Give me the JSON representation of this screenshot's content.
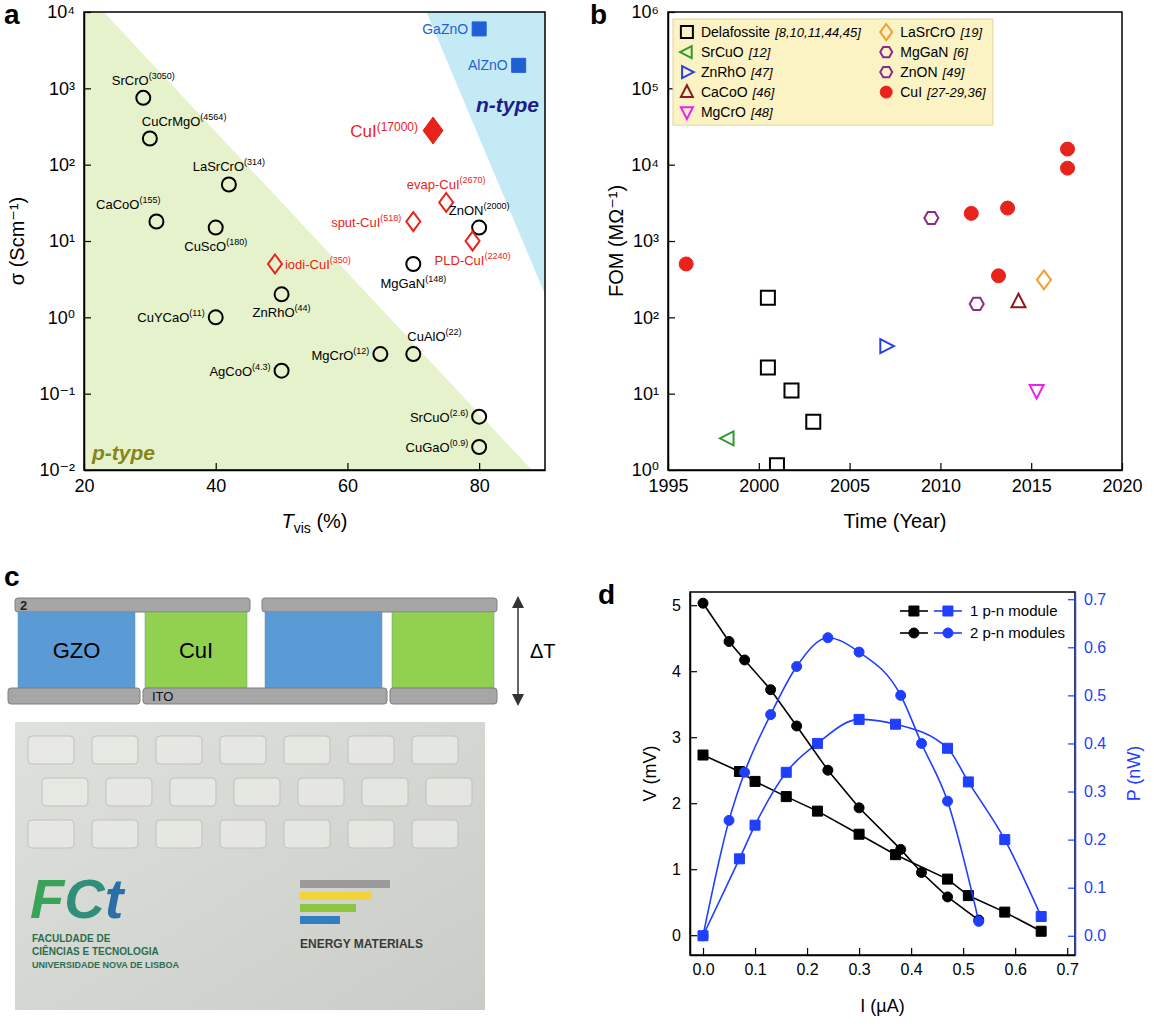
{
  "chart_data": [
    {
      "type": "scatter",
      "panel_label": "a",
      "x_label": "Tvis (%)",
      "y_label": "σ (Scm⁻¹)",
      "log": "y",
      "xlim": [
        20,
        90
      ],
      "ylim": [
        0.01,
        10000
      ],
      "xticks": [
        20,
        40,
        60,
        80
      ],
      "yticks": [
        {
          "value": 0.01,
          "label": "10⁻²"
        },
        {
          "value": 0.1,
          "label": "10⁻¹"
        },
        {
          "value": 1,
          "label": "10⁰"
        },
        {
          "value": 10,
          "label": "10¹"
        },
        {
          "value": 100,
          "label": "10²"
        },
        {
          "value": 1000,
          "label": "10³"
        },
        {
          "value": 10000,
          "label": "10⁴"
        }
      ],
      "regions": [
        {
          "name": "p-type",
          "color": "#e6f2cb",
          "points": [
            [
              20,
              0.01
            ],
            [
              20,
              10000
            ],
            [
              23,
              10000
            ],
            [
              88,
              0.01
            ]
          ]
        },
        {
          "name": "n-type",
          "color": "#c4ebf5",
          "points": [
            [
              72,
              10000
            ],
            [
              90,
              10000
            ],
            [
              90,
              2
            ]
          ]
        }
      ],
      "series": [
        {
          "color": "#000000",
          "marker": "open-circle",
          "x": [
            29,
            30,
            42,
            31,
            40,
            80,
            70,
            50,
            40,
            65,
            70,
            50,
            80,
            80
          ],
          "values": [
            750,
            220,
            55,
            18,
            15,
            15,
            5,
            2,
            1,
            0.33,
            0.33,
            0.2,
            0.05,
            0.02
          ],
          "point_labels": [
            "SrCrO",
            "CuCrMgO",
            "LaSrCrO",
            "CaCoO",
            "CuScO",
            "ZnON",
            "MgGaN",
            "ZnRhO",
            "CuYCaO",
            "MgCrO",
            "CuAlO",
            "AgCoO",
            "SrCuO",
            "CuGaO"
          ],
          "point_notes": [
            "(3050)",
            "(4564)",
            "(314)",
            "(155)",
            "(180)",
            "(2000)",
            "(148)",
            "(44)",
            "(11)",
            "(12)",
            "(22)",
            "(4.3)",
            "(2.6)",
            "(0.9)"
          ]
        },
        {
          "color": "#e8231b",
          "marker": "open-diamond",
          "x": [
            49,
            70,
            75,
            79
          ],
          "values": [
            5,
            18,
            32,
            10
          ],
          "point_labels": [
            "iodi-CuI",
            "sput-CuI",
            "evap-CuI",
            "PLD-CuI"
          ],
          "point_notes": [
            "(350)",
            "(518)",
            "(2670)",
            "(2240)"
          ]
        },
        {
          "color": "#e8231b",
          "marker": "diamond",
          "x": [
            73
          ],
          "values": [
            280
          ],
          "point_labels": [
            "CuI"
          ],
          "point_notes": [
            "(17000)"
          ]
        },
        {
          "color": "#1f5fd6",
          "marker": "square",
          "x": [
            80,
            86
          ],
          "values": [
            6000,
            2000
          ],
          "point_labels": [
            "GaZnO",
            "AlZnO"
          ]
        }
      ]
    },
    {
      "type": "scatter",
      "panel_label": "b",
      "x_label": "Time (Year)",
      "y_label": "FOM (MΩ⁻¹)",
      "log": "y",
      "legend": "upper left",
      "xlim": [
        1995,
        2020
      ],
      "ylim": [
        1,
        1000000
      ],
      "xticks": [
        1995,
        2000,
        2005,
        2010,
        2015,
        2020
      ],
      "yticks": [
        {
          "value": 1,
          "label": "10⁰"
        },
        {
          "value": 10,
          "label": "10¹"
        },
        {
          "value": 100,
          "label": "10²"
        },
        {
          "value": 1000,
          "label": "10³"
        },
        {
          "value": 10000,
          "label": "10⁴"
        },
        {
          "value": 100000,
          "label": "10⁵"
        },
        {
          "value": 1000000,
          "label": "10⁶"
        }
      ],
      "series": [
        {
          "name": "Delafossite",
          "refs": "[8,10,11,44,45]",
          "color": "#000000",
          "marker": "open-square",
          "x": [
            2000.5,
            2000.5,
            2001.8,
            2003,
            2001
          ],
          "values": [
            180,
            22,
            11,
            4.3,
            1.15
          ]
        },
        {
          "name": "SrCuO",
          "refs": "[12]",
          "color": "#2e9b2e",
          "marker": "open-triangle-left",
          "x": [
            1998.3
          ],
          "values": [
            2.6
          ]
        },
        {
          "name": "ZnRhO",
          "refs": "[47]",
          "color": "#2a3fe0",
          "marker": "open-triangle-right",
          "x": [
            2007
          ],
          "values": [
            42
          ]
        },
        {
          "name": "CaCoO",
          "refs": "[46]",
          "color": "#8b1a1a",
          "marker": "open-triangle-up",
          "x": [
            2014.3
          ],
          "values": [
            160
          ]
        },
        {
          "name": "MgCrO",
          "refs": "[48]",
          "color": "#ee22ee",
          "marker": "open-triangle-down",
          "x": [
            2015.3
          ],
          "values": [
            11
          ]
        },
        {
          "name": "LaSrCrO",
          "refs": "[19]",
          "color": "#f0a030",
          "marker": "open-diamond",
          "x": [
            2015.7
          ],
          "values": [
            310
          ]
        },
        {
          "name": "MgGaN",
          "refs": "[6]",
          "color": "#8b2a8b",
          "marker": "open-hexagon",
          "x": [
            2012
          ],
          "values": [
            150
          ]
        },
        {
          "name": "ZnON",
          "refs": "[49]",
          "color": "#8b2a8b",
          "marker": "open-hexagon",
          "x": [
            2009.5
          ],
          "values": [
            2000
          ]
        },
        {
          "name": "CuI",
          "refs": "[27-29,36]",
          "color": "#e8231b",
          "marker": "circle",
          "x": [
            1996,
            2011.7,
            2013.2,
            2013.7,
            2017,
            2017
          ],
          "values": [
            500,
            2300,
            350,
            2700,
            16000,
            9000
          ]
        }
      ]
    },
    {
      "type": "line",
      "panel_label": "d",
      "x_label": "I (µA)",
      "y_label": "V (mV)",
      "y2_label": "P (nW)",
      "legend": "upper right",
      "xlim": [
        -0.025,
        0.715
      ],
      "ylim": [
        -0.3,
        5.2
      ],
      "y2lim": [
        -0.04,
        0.715
      ],
      "xticks": [
        {
          "value": 0,
          "label": "0.0"
        },
        0.1,
        0.2,
        0.3,
        0.4,
        0.5,
        0.6,
        0.7
      ],
      "yticks": [
        0,
        1,
        2,
        3,
        4,
        5
      ],
      "y2ticks": [
        {
          "value": 0,
          "label": "0.0"
        },
        0.1,
        0.2,
        0.3,
        0.4,
        0.5,
        0.6,
        0.7
      ],
      "series": [
        {
          "name": "1 p-n module",
          "color": "#000000",
          "marker": "square",
          "line_style": "solid",
          "x": [
            0,
            0.07,
            0.1,
            0.16,
            0.22,
            0.3,
            0.37,
            0.47,
            0.51,
            0.58,
            0.65
          ],
          "values": [
            2.73,
            2.48,
            2.33,
            2.1,
            1.88,
            1.53,
            1.22,
            0.85,
            0.6,
            0.35,
            0.06
          ]
        },
        {
          "color": "#1f3fff",
          "marker": "square",
          "line_style": "smooth",
          "axis": "y2",
          "x": [
            0,
            0.07,
            0.1,
            0.16,
            0.22,
            0.3,
            0.37,
            0.47,
            0.51,
            0.58,
            0.65
          ],
          "values": [
            0,
            0.16,
            0.23,
            0.34,
            0.4,
            0.45,
            0.44,
            0.39,
            0.32,
            0.2,
            0.04
          ]
        },
        {
          "name": "2 p-n modules",
          "color": "#000000",
          "marker": "circle",
          "line_style": "solid",
          "x": [
            0,
            0.05,
            0.08,
            0.13,
            0.18,
            0.24,
            0.3,
            0.38,
            0.42,
            0.47,
            0.53
          ],
          "values": [
            5.03,
            4.45,
            4.17,
            3.72,
            3.17,
            2.5,
            1.93,
            1.3,
            0.95,
            0.58,
            0.23
          ]
        },
        {
          "color": "#1f3fff",
          "marker": "circle",
          "line_style": "smooth",
          "axis": "y2",
          "x": [
            0,
            0.05,
            0.08,
            0.13,
            0.18,
            0.24,
            0.3,
            0.38,
            0.42,
            0.47,
            0.53
          ],
          "values": [
            0,
            0.24,
            0.34,
            0.46,
            0.56,
            0.62,
            0.59,
            0.5,
            0.4,
            0.28,
            0.03
          ]
        }
      ]
    }
  ],
  "diagram": {
    "panel_label": "c",
    "layer_mark": "2",
    "materials": [
      "GZO",
      "CuI"
    ],
    "electrode": "ITO",
    "gradient": "ΔT",
    "photo": {
      "logo_left": "FCt",
      "logo_left_lines": [
        "FACULDADE DE",
        "CIÊNCIAS E TECNOLOGIA",
        "UNIVERSIDADE NOVA DE LISBOA"
      ],
      "logo_right": "ENERGY MATERIALS"
    }
  }
}
